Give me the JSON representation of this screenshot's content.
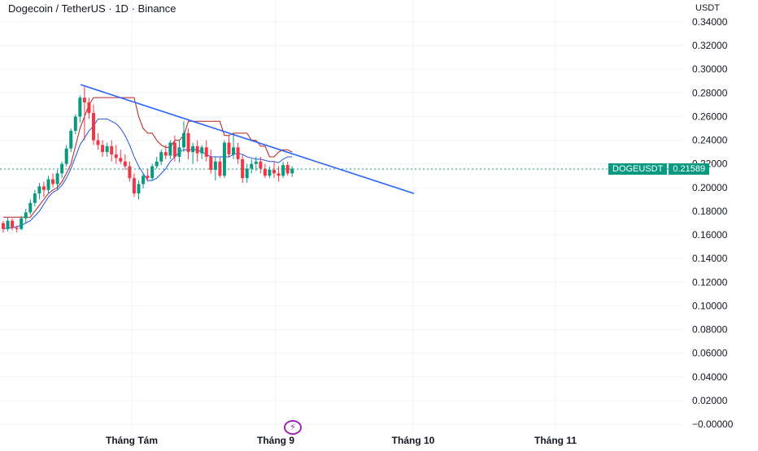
{
  "header": {
    "symbol": "Dogecoin / TetherUS",
    "interval": "1D",
    "exchange": "Binance",
    "separator": "·"
  },
  "price_axis": {
    "unit": "USDT",
    "ticks": [
      "0.34000",
      "0.32000",
      "0.30000",
      "0.28000",
      "0.26000",
      "0.24000",
      "0.22000",
      "0.20000",
      "0.18000",
      "0.16000",
      "0.14000",
      "0.12000",
      "0.10000",
      "0.08000",
      "0.06000",
      "0.04000",
      "0.02000",
      "−0.00000"
    ]
  },
  "time_axis": {
    "labels": [
      "Tháng Tám",
      "Tháng 9",
      "Tháng 10",
      "Tháng 11"
    ]
  },
  "price_tag": {
    "symbol": "DOGEUSDT",
    "price": "0.21589"
  },
  "colors": {
    "up": "#089981",
    "down": "#f23645",
    "trendline": "#2962ff",
    "channel_upper": "#b71c1c",
    "channel_lower": "#1e53e5",
    "grid": "#f0f3fa"
  },
  "event_icon": "lightning-bolt-icon",
  "chart_data": {
    "type": "candlestick",
    "ylim": [
      -0.005,
      0.345
    ],
    "candles": [
      [
        0.17,
        0.172,
        0.162,
        0.165
      ],
      [
        0.165,
        0.175,
        0.163,
        0.172
      ],
      [
        0.172,
        0.174,
        0.164,
        0.166
      ],
      [
        0.166,
        0.168,
        0.162,
        0.165
      ],
      [
        0.165,
        0.176,
        0.164,
        0.174
      ],
      [
        0.174,
        0.182,
        0.17,
        0.179
      ],
      [
        0.179,
        0.19,
        0.177,
        0.187
      ],
      [
        0.187,
        0.198,
        0.184,
        0.195
      ],
      [
        0.195,
        0.204,
        0.19,
        0.201
      ],
      [
        0.201,
        0.205,
        0.192,
        0.198
      ],
      [
        0.198,
        0.21,
        0.195,
        0.207
      ],
      [
        0.207,
        0.212,
        0.2,
        0.203
      ],
      [
        0.203,
        0.215,
        0.198,
        0.212
      ],
      [
        0.212,
        0.222,
        0.208,
        0.22
      ],
      [
        0.22,
        0.236,
        0.218,
        0.233
      ],
      [
        0.233,
        0.25,
        0.23,
        0.248
      ],
      [
        0.248,
        0.262,
        0.245,
        0.26
      ],
      [
        0.26,
        0.278,
        0.255,
        0.276
      ],
      [
        0.276,
        0.286,
        0.24,
        0.272
      ],
      [
        0.272,
        0.276,
        0.258,
        0.263
      ],
      [
        0.263,
        0.27,
        0.236,
        0.24
      ],
      [
        0.24,
        0.246,
        0.232,
        0.236
      ],
      [
        0.236,
        0.24,
        0.226,
        0.23
      ],
      [
        0.23,
        0.238,
        0.226,
        0.235
      ],
      [
        0.235,
        0.24,
        0.222,
        0.228
      ],
      [
        0.228,
        0.236,
        0.22,
        0.225
      ],
      [
        0.225,
        0.232,
        0.22,
        0.222
      ],
      [
        0.222,
        0.228,
        0.215,
        0.218
      ],
      [
        0.218,
        0.222,
        0.205,
        0.208
      ],
      [
        0.208,
        0.212,
        0.192,
        0.195
      ],
      [
        0.195,
        0.206,
        0.19,
        0.203
      ],
      [
        0.203,
        0.212,
        0.199,
        0.21
      ],
      [
        0.21,
        0.216,
        0.205,
        0.208
      ],
      [
        0.208,
        0.22,
        0.206,
        0.218
      ],
      [
        0.218,
        0.226,
        0.216,
        0.222
      ],
      [
        0.222,
        0.232,
        0.219,
        0.23
      ],
      [
        0.23,
        0.236,
        0.224,
        0.227
      ],
      [
        0.227,
        0.24,
        0.224,
        0.238
      ],
      [
        0.238,
        0.244,
        0.222,
        0.226
      ],
      [
        0.226,
        0.24,
        0.221,
        0.234
      ],
      [
        0.234,
        0.256,
        0.23,
        0.246
      ],
      [
        0.246,
        0.25,
        0.224,
        0.23
      ],
      [
        0.23,
        0.238,
        0.22,
        0.235
      ],
      [
        0.235,
        0.24,
        0.222,
        0.229
      ],
      [
        0.229,
        0.236,
        0.224,
        0.234
      ],
      [
        0.234,
        0.24,
        0.222,
        0.226
      ],
      [
        0.226,
        0.232,
        0.212,
        0.215
      ],
      [
        0.215,
        0.226,
        0.206,
        0.222
      ],
      [
        0.222,
        0.226,
        0.208,
        0.21
      ],
      [
        0.21,
        0.24,
        0.208,
        0.238
      ],
      [
        0.238,
        0.244,
        0.225,
        0.228
      ],
      [
        0.228,
        0.246,
        0.224,
        0.234
      ],
      [
        0.234,
        0.238,
        0.22,
        0.224
      ],
      [
        0.224,
        0.228,
        0.204,
        0.208
      ],
      [
        0.208,
        0.22,
        0.204,
        0.216
      ],
      [
        0.216,
        0.224,
        0.212,
        0.22
      ],
      [
        0.22,
        0.226,
        0.214,
        0.222
      ],
      [
        0.222,
        0.226,
        0.212,
        0.216
      ],
      [
        0.216,
        0.22,
        0.208,
        0.21
      ],
      [
        0.21,
        0.218,
        0.208,
        0.215
      ],
      [
        0.215,
        0.222,
        0.208,
        0.212
      ],
      [
        0.212,
        0.218,
        0.205,
        0.21
      ],
      [
        0.21,
        0.222,
        0.208,
        0.219
      ],
      [
        0.219,
        0.222,
        0.21,
        0.212
      ],
      [
        0.212,
        0.218,
        0.209,
        0.216
      ]
    ],
    "trendline": [
      [
        0.287,
        0
      ],
      [
        0.195,
        110
      ]
    ],
    "channel_upper": [
      0.175,
      0.175,
      0.175,
      0.175,
      0.175,
      0.175,
      0.175,
      0.18,
      0.185,
      0.19,
      0.195,
      0.198,
      0.2,
      0.205,
      0.212,
      0.22,
      0.235,
      0.25,
      0.26,
      0.27,
      0.276,
      0.276,
      0.276,
      0.276,
      0.276,
      0.276,
      0.276,
      0.276,
      0.276,
      0.276,
      0.26,
      0.25,
      0.246,
      0.246,
      0.24,
      0.236,
      0.234,
      0.234,
      0.24,
      0.24,
      0.244,
      0.256,
      0.256,
      0.256,
      0.256,
      0.256,
      0.256,
      0.256,
      0.256,
      0.244,
      0.244,
      0.246,
      0.246,
      0.246,
      0.246,
      0.24,
      0.24,
      0.235,
      0.235,
      0.226,
      0.226,
      0.23,
      0.232,
      0.232,
      0.23
    ],
    "channel_mid": [
      0.165,
      0.166,
      0.166,
      0.167,
      0.168,
      0.17,
      0.172,
      0.176,
      0.18,
      0.186,
      0.192,
      0.196,
      0.198,
      0.202,
      0.208,
      0.216,
      0.226,
      0.236,
      0.242,
      0.248,
      0.252,
      0.258,
      0.258,
      0.258,
      0.256,
      0.254,
      0.25,
      0.244,
      0.236,
      0.226,
      0.218,
      0.212,
      0.206,
      0.206,
      0.208,
      0.212,
      0.216,
      0.222,
      0.226,
      0.23,
      0.232,
      0.232,
      0.232,
      0.232,
      0.23,
      0.228,
      0.226,
      0.226,
      0.226,
      0.226,
      0.226,
      0.228,
      0.229,
      0.228,
      0.226,
      0.225,
      0.224,
      0.224,
      0.223,
      0.222,
      0.222,
      0.221,
      0.224,
      0.226,
      0.226
    ]
  }
}
